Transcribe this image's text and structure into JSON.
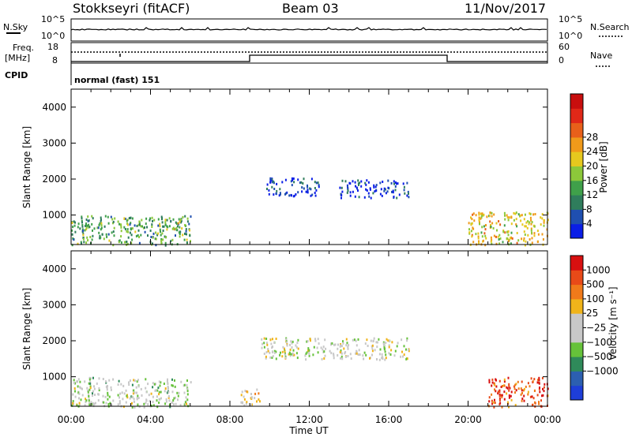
{
  "header": {
    "station": "Stokkseyri (fitACF)",
    "beam": "Beam 03",
    "date": "11/Nov/2017"
  },
  "status_panel": {
    "nsky_label": "N.Sky",
    "nsky_ticks": [
      "10^5",
      "10^0"
    ],
    "nsearch_label": "N.Search",
    "nsearch_ticks": [
      "10^5",
      "10^0"
    ],
    "freq_label_1": "Freq.",
    "freq_label_2": "[MHz]",
    "freq_ticks": [
      "18",
      "8"
    ],
    "nave_label": "Nave",
    "nave_ticks": [
      "60",
      "0"
    ],
    "cpid_label": "CPID",
    "cpid_value": "normal (fast) 151"
  },
  "x_axis": {
    "label": "Time UT",
    "tick_labels": [
      "00:00",
      "04:00",
      "08:00",
      "12:00",
      "16:00",
      "20:00",
      "00:00"
    ],
    "range_hours": [
      0,
      24
    ]
  },
  "chart_data": [
    {
      "type": "heatmap",
      "quantity": "Power",
      "ylabel": "Slant Range [km]",
      "ylim": [
        180,
        4500
      ],
      "y_tick_labels": [
        "1000",
        "2000",
        "3000",
        "4000"
      ],
      "colorbar": {
        "label": "Power [dB]",
        "tick_labels": [
          "4",
          "8",
          "12",
          "16",
          "20",
          "24",
          "28"
        ],
        "colors": [
          "#0a1ee6",
          "#1f4fb0",
          "#2f7d5c",
          "#3fa04a",
          "#8cc83a",
          "#e6c81e",
          "#f09a1a",
          "#e8601a",
          "#e02818",
          "#c80e0e"
        ]
      },
      "regions": [
        {
          "t": [
            0,
            6
          ],
          "r": [
            180,
            1000
          ],
          "level": 0.35
        },
        {
          "t": [
            4.7,
            5.6
          ],
          "r": [
            600,
            1000
          ],
          "level": 0.45
        },
        {
          "t": [
            9.8,
            12.5
          ],
          "r": [
            1550,
            2050
          ],
          "level": 0.1
        },
        {
          "t": [
            13.5,
            17
          ],
          "r": [
            1500,
            2000
          ],
          "level": 0.12
        },
        {
          "t": [
            20,
            24
          ],
          "r": [
            180,
            1100
          ],
          "level": 0.55
        }
      ]
    },
    {
      "type": "heatmap",
      "quantity": "Velocity",
      "ylabel": "Slant Range [km]",
      "ylim": [
        180,
        4500
      ],
      "y_tick_labels": [
        "1000",
        "2000",
        "3000",
        "4000"
      ],
      "colorbar": {
        "label": "Velocity [m s⁻¹]",
        "tick_labels": [
          "1000",
          "500",
          "100",
          "25",
          "−25",
          "−100",
          "−500",
          "−1000"
        ],
        "colors": [
          "#1e3ed8",
          "#2c5fb0",
          "#2f8a5a",
          "#66c23a",
          "#c8c8c8",
          "#c8c8c8",
          "#f0b41a",
          "#f07a1a",
          "#e84a18",
          "#d81010"
        ]
      },
      "regions": [
        {
          "t": [
            0,
            6
          ],
          "r": [
            180,
            1000
          ],
          "level": 0.45
        },
        {
          "t": [
            8.5,
            9.5
          ],
          "r": [
            180,
            700
          ],
          "level": 0.6
        },
        {
          "t": [
            9.5,
            17
          ],
          "r": [
            1500,
            2100
          ],
          "level": 0.48
        },
        {
          "t": [
            21,
            24
          ],
          "r": [
            180,
            1000
          ],
          "level": 0.85
        }
      ]
    }
  ]
}
